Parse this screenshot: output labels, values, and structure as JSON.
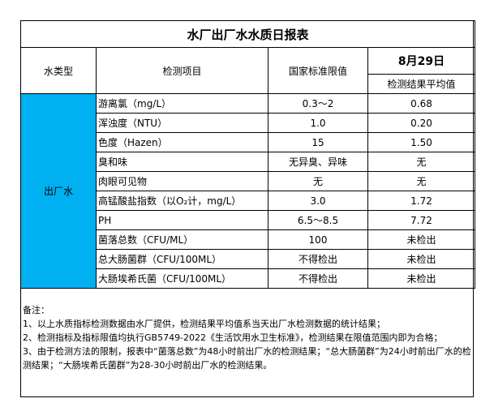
{
  "title": "水厂出厂水水质日报表",
  "headers": {
    "water_type": "水类型",
    "item": "检测项目",
    "standard": "国家标准限值",
    "date": "8月29日",
    "result": "检测结果平均值"
  },
  "water_type_value": "出厂水",
  "colors": {
    "water_type_cell": "#00b0f0"
  },
  "rows": [
    {
      "item": "游离氯（mg/L）",
      "standard": "0.3～2",
      "result": "0.68"
    },
    {
      "item": "浑浊度（NTU）",
      "standard": "1.0",
      "result": "0.20"
    },
    {
      "item": "色度（Hazen）",
      "standard": "15",
      "result": "1.50"
    },
    {
      "item": "臭和味",
      "standard": "无异臭、异味",
      "result": "无"
    },
    {
      "item": "肉眼可见物",
      "standard": "无",
      "result": "无"
    },
    {
      "item": "高锰酸盐指数（以O₂计，mg/L）",
      "standard": "3.0",
      "result": "1.72"
    },
    {
      "item": "PH",
      "standard": "6.5～8.5",
      "result": "7.72"
    },
    {
      "item": "菌落总数（CFU/ML）",
      "standard": "100",
      "result": "未检出"
    },
    {
      "item": "总大肠菌群（CFU/100ML）",
      "standard": "不得检出",
      "result": "未检出"
    },
    {
      "item": "大肠埃希氏菌（CFU/100ML）",
      "standard": "不得检出",
      "result": "未检出"
    }
  ],
  "notes": {
    "heading": "备注：",
    "lines": [
      "1、以上水质指标检测数据由水厂提供，检测结果平均值系当天出厂水检测数据的统计结果；",
      "2、检测指标及指标限值均执行GB5749-2022《生活饮用水卫生标准》，检测结果在限值范围内即为合格；",
      "3、由于检测方法的限制，报表中“菌落总数”为48小时前出厂水的检测结果；“总大肠菌群”为24小时前出厂水的检测结果；“大肠埃希氏菌群”为28-30小时前出厂水的检测结果。"
    ]
  }
}
